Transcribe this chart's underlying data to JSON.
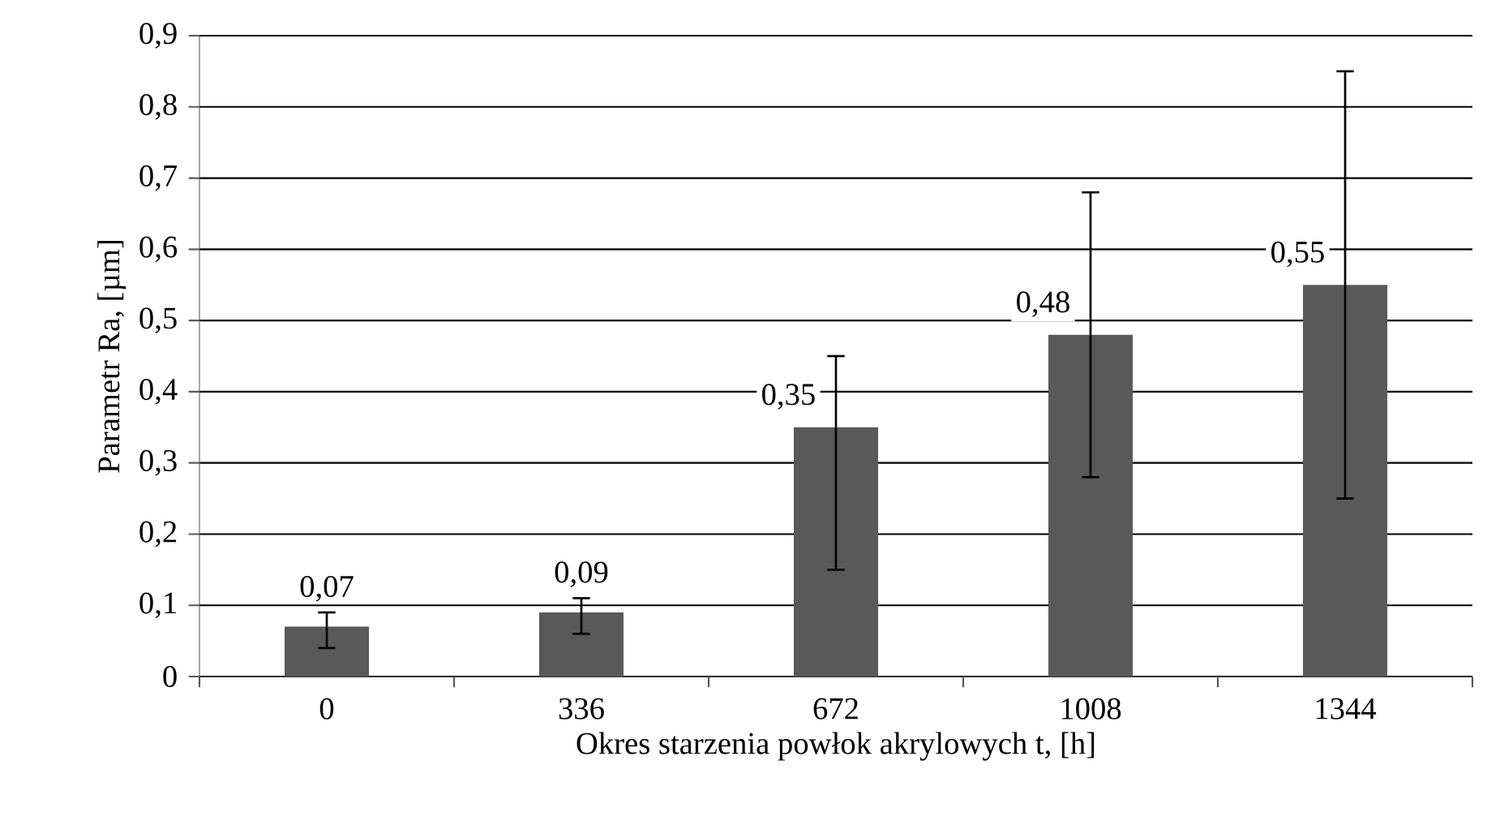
{
  "chart_data": {
    "type": "bar",
    "xlabel": "Okres starzenia powłok akrylowych  t, [h]",
    "ylabel": "Parametr  Ra, [µm]",
    "categories": [
      "0",
      "336",
      "672",
      "1008",
      "1344"
    ],
    "values": [
      0.07,
      0.09,
      0.35,
      0.48,
      0.55
    ],
    "color": "#595959",
    "errors": [
      [
        0.04,
        0.09
      ],
      [
        0.06,
        0.11
      ],
      [
        0.15,
        0.45
      ],
      [
        0.28,
        0.68
      ],
      [
        0.25,
        0.85
      ]
    ],
    "value_labels": [
      "0,07",
      "0,09",
      "0,35",
      "0,48",
      "0,55"
    ],
    "ylim": [
      0,
      0.9
    ],
    "yticks": [
      {
        "value": 0,
        "label": "0"
      },
      {
        "value": 0.1,
        "label": "0,1"
      },
      {
        "value": 0.2,
        "label": "0,2"
      },
      {
        "value": 0.3,
        "label": "0,3"
      },
      {
        "value": 0.4,
        "label": "0,4"
      },
      {
        "value": 0.5,
        "label": "0,5"
      },
      {
        "value": 0.6,
        "label": "0,6"
      },
      {
        "value": 0.7,
        "label": "0,7"
      },
      {
        "value": 0.8,
        "label": "0,8"
      },
      {
        "value": 0.9,
        "label": "0,9"
      }
    ],
    "grid": "y"
  }
}
